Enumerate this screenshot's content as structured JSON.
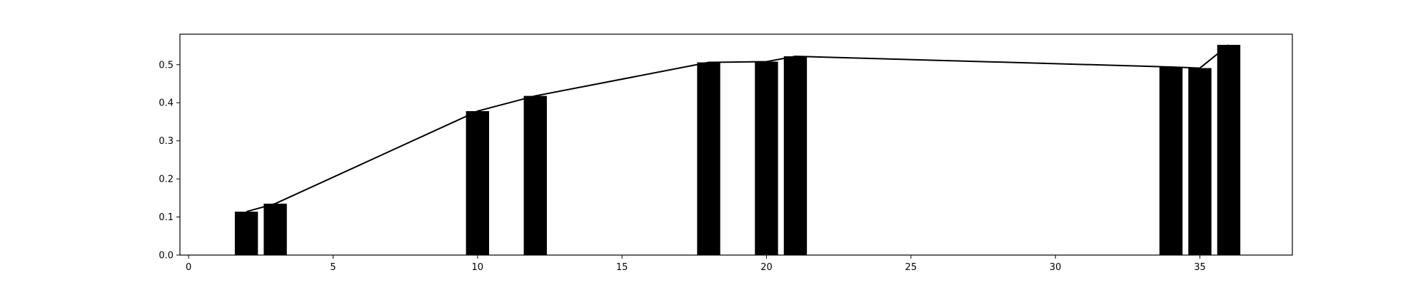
{
  "chart_data": {
    "type": "bar",
    "title": "",
    "xlabel": "",
    "ylabel": "",
    "xlim": [
      -0.3,
      38.2
    ],
    "ylim": [
      0,
      0.58
    ],
    "grid": false,
    "legend": "none",
    "bar_color": "#000000",
    "line_color": "#000000",
    "bar_width": 0.8,
    "x": [
      2,
      3,
      10,
      12,
      18,
      20,
      21,
      34,
      35,
      36
    ],
    "values": [
      0.114,
      0.135,
      0.378,
      0.418,
      0.506,
      0.508,
      0.522,
      0.494,
      0.491,
      0.552
    ],
    "xticks": [
      {
        "value": 0,
        "label": "0"
      },
      {
        "value": 5,
        "label": "5"
      },
      {
        "value": 10,
        "label": "10"
      },
      {
        "value": 15,
        "label": "15"
      },
      {
        "value": 20,
        "label": "20"
      },
      {
        "value": 25,
        "label": "25"
      },
      {
        "value": 30,
        "label": "30"
      },
      {
        "value": 35,
        "label": "35"
      }
    ],
    "yticks": [
      {
        "value": 0.0,
        "label": "0.0"
      },
      {
        "value": 0.1,
        "label": "0.1"
      },
      {
        "value": 0.2,
        "label": "0.2"
      },
      {
        "value": 0.3,
        "label": "0.3"
      },
      {
        "value": 0.4,
        "label": "0.4"
      },
      {
        "value": 0.5,
        "label": "0.5"
      }
    ]
  }
}
